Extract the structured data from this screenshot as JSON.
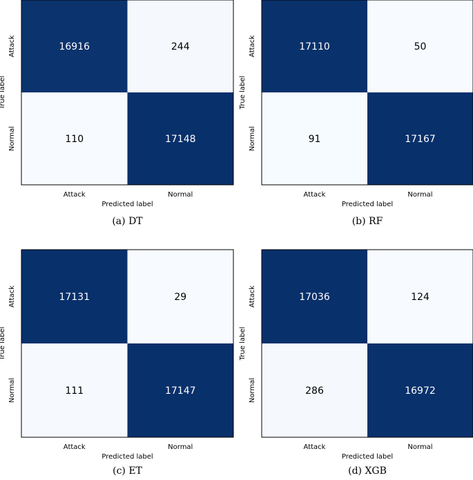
{
  "chart_data": [
    {
      "type": "heatmap",
      "caption": "(a) DT",
      "xlabel": "Predicted label",
      "ylabel": "True label",
      "x_categories": [
        "Attack",
        "Normal"
      ],
      "y_categories": [
        "Attack",
        "Normal"
      ],
      "matrix": [
        [
          16916,
          244
        ],
        [
          110,
          17148
        ]
      ],
      "colors": {
        "dark": "#08306b",
        "light": "#f7fbff",
        "text_dark": "#ffffff",
        "text_light": "#000000"
      }
    },
    {
      "type": "heatmap",
      "caption": "(b) RF",
      "xlabel": "Predicted label",
      "ylabel": "True label",
      "x_categories": [
        "Attack",
        "Normal"
      ],
      "y_categories": [
        "Attack",
        "Normal"
      ],
      "matrix": [
        [
          17110,
          50
        ],
        [
          91,
          17167
        ]
      ],
      "colors": {
        "dark": "#08306b",
        "light": "#f7fbff",
        "text_dark": "#ffffff",
        "text_light": "#000000"
      }
    },
    {
      "type": "heatmap",
      "caption": "(c) ET",
      "xlabel": "Predicted label",
      "ylabel": "True label",
      "x_categories": [
        "Attack",
        "Normal"
      ],
      "y_categories": [
        "Attack",
        "Normal"
      ],
      "matrix": [
        [
          17131,
          29
        ],
        [
          111,
          17147
        ]
      ],
      "colors": {
        "dark": "#08306b",
        "light": "#f7fbff",
        "text_dark": "#ffffff",
        "text_light": "#000000"
      }
    },
    {
      "type": "heatmap",
      "caption": "(d) XGB",
      "xlabel": "Predicted label",
      "ylabel": "True label",
      "x_categories": [
        "Attack",
        "Normal"
      ],
      "y_categories": [
        "Attack",
        "Normal"
      ],
      "matrix": [
        [
          17036,
          124
        ],
        [
          286,
          16972
        ]
      ],
      "colors": {
        "dark": "#08306b",
        "light": "#f7fbff",
        "text_dark": "#ffffff",
        "text_light": "#000000"
      }
    }
  ]
}
